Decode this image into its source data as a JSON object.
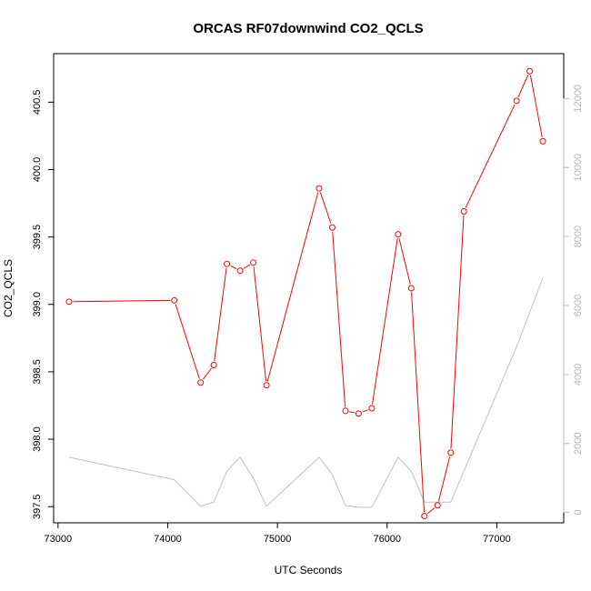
{
  "chart_data": {
    "type": "line",
    "title": "ORCAS RF07downwind CO2_QCLS",
    "xlabel": "UTC Seconds",
    "ylabel": "CO2_QCLS",
    "xlim": [
      72960,
      77610
    ],
    "ylim": [
      397.38,
      400.86
    ],
    "y2lim": [
      -300,
      13300
    ],
    "x_ticks": [
      73000,
      74000,
      75000,
      76000,
      77000
    ],
    "y_ticks": [
      397.5,
      398.0,
      398.5,
      399.0,
      399.5,
      400.0,
      400.5
    ],
    "y2_ticks": [
      0,
      2000,
      4000,
      6000,
      8000,
      10000,
      12000
    ],
    "series": [
      {
        "axis": "left",
        "color": "#ff0000",
        "markers": "open-circle",
        "x": [
          73100,
          74060,
          74300,
          74420,
          74540,
          74660,
          74780,
          74900,
          75380,
          75500,
          75620,
          75740,
          75860,
          76100,
          76220,
          76340,
          76460,
          76580,
          76700,
          77180,
          77300,
          77420
        ],
        "y": [
          399.02,
          399.03,
          398.42,
          398.55,
          399.3,
          399.25,
          399.31,
          398.4,
          399.86,
          399.57,
          398.21,
          398.19,
          398.23,
          399.52,
          399.12,
          397.43,
          397.51,
          397.9,
          399.69,
          400.51,
          400.73,
          400.21
        ]
      },
      {
        "axis": "right",
        "color": "#c0c0c0",
        "markers": "none",
        "x": [
          73100,
          74060,
          74300,
          74420,
          74540,
          74660,
          74780,
          74900,
          75380,
          75500,
          75620,
          75740,
          75860,
          76100,
          76220,
          76340,
          76460,
          76580,
          76700,
          77180,
          77300,
          77420
        ],
        "y": [
          1600,
          950,
          180,
          300,
          1200,
          1600,
          1000,
          180,
          1600,
          1100,
          200,
          150,
          150,
          1600,
          1200,
          300,
          300,
          300,
          1200,
          4800,
          5800,
          6800
        ]
      }
    ]
  }
}
